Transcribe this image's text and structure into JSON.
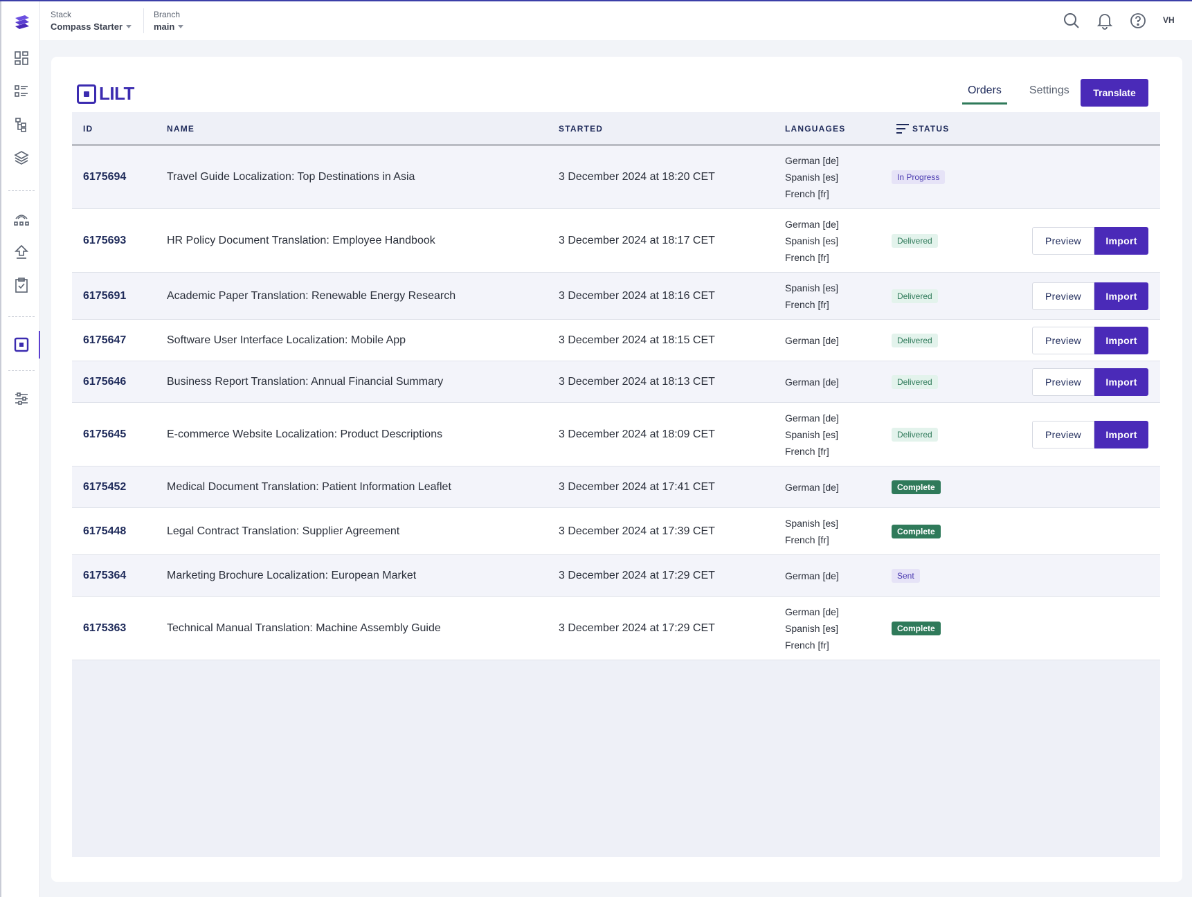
{
  "header": {
    "stack_caption": "Stack",
    "stack_value": "Compass Starter",
    "branch_caption": "Branch",
    "branch_value": "main",
    "avatar_initials": "VH"
  },
  "app": {
    "logo_text": "LILT",
    "tabs": [
      {
        "label": "Orders",
        "active": true
      },
      {
        "label": "Settings",
        "active": false
      }
    ],
    "translate_label": "Translate"
  },
  "table": {
    "columns": [
      "ID",
      "NAME",
      "STARTED",
      "LANGUAGES",
      "STATUS"
    ],
    "preview_label": "Preview",
    "import_label": "Import",
    "rows": [
      {
        "id": "6175694",
        "name": "Travel Guide Localization: Top Destinations in Asia",
        "started": "3 December 2024 at 18:20 CET",
        "languages": [
          "German [de]",
          "Spanish [es]",
          "French [fr]"
        ],
        "status": "In Progress",
        "kind": "progress",
        "actions": false
      },
      {
        "id": "6175693",
        "name": "HR Policy Document Translation: Employee Handbook",
        "started": "3 December 2024 at 18:17 CET",
        "languages": [
          "German [de]",
          "Spanish [es]",
          "French [fr]"
        ],
        "status": "Delivered",
        "kind": "delivered",
        "actions": true
      },
      {
        "id": "6175691",
        "name": "Academic Paper Translation: Renewable Energy Research",
        "started": "3 December 2024 at 18:16 CET",
        "languages": [
          "Spanish [es]",
          "French [fr]"
        ],
        "status": "Delivered",
        "kind": "delivered",
        "actions": true
      },
      {
        "id": "6175647",
        "name": "Software User Interface Localization: Mobile App",
        "started": "3 December 2024 at 18:15 CET",
        "languages": [
          "German [de]"
        ],
        "status": "Delivered",
        "kind": "delivered",
        "actions": true
      },
      {
        "id": "6175646",
        "name": "Business Report Translation: Annual Financial Summary",
        "started": "3 December 2024 at 18:13 CET",
        "languages": [
          "German [de]"
        ],
        "status": "Delivered",
        "kind": "delivered",
        "actions": true
      },
      {
        "id": "6175645",
        "name": "E-commerce Website Localization: Product Descriptions",
        "started": "3 December 2024 at 18:09 CET",
        "languages": [
          "German [de]",
          "Spanish [es]",
          "French [fr]"
        ],
        "status": "Delivered",
        "kind": "delivered",
        "actions": true
      },
      {
        "id": "6175452",
        "name": "Medical Document Translation: Patient Information Leaflet",
        "started": "3 December 2024 at 17:41 CET",
        "languages": [
          "German [de]"
        ],
        "status": "Complete",
        "kind": "complete",
        "actions": false
      },
      {
        "id": "6175448",
        "name": "Legal Contract Translation: Supplier Agreement",
        "started": "3 December 2024 at 17:39 CET",
        "languages": [
          "Spanish [es]",
          "French [fr]"
        ],
        "status": "Complete",
        "kind": "complete",
        "actions": false
      },
      {
        "id": "6175364",
        "name": "Marketing Brochure Localization: European Market",
        "started": "3 December 2024 at 17:29 CET",
        "languages": [
          "German [de]"
        ],
        "status": "Sent",
        "kind": "sent",
        "actions": false
      },
      {
        "id": "6175363",
        "name": "Technical Manual Translation: Machine Assembly Guide",
        "started": "3 December 2024 at 17:29 CET",
        "languages": [
          "German [de]",
          "Spanish [es]",
          "French [fr]"
        ],
        "status": "Complete",
        "kind": "complete",
        "actions": false
      }
    ]
  },
  "colors": {
    "accent": "#4a2ab8",
    "complete": "#2f7a5a",
    "navy": "#1e2a5a"
  }
}
